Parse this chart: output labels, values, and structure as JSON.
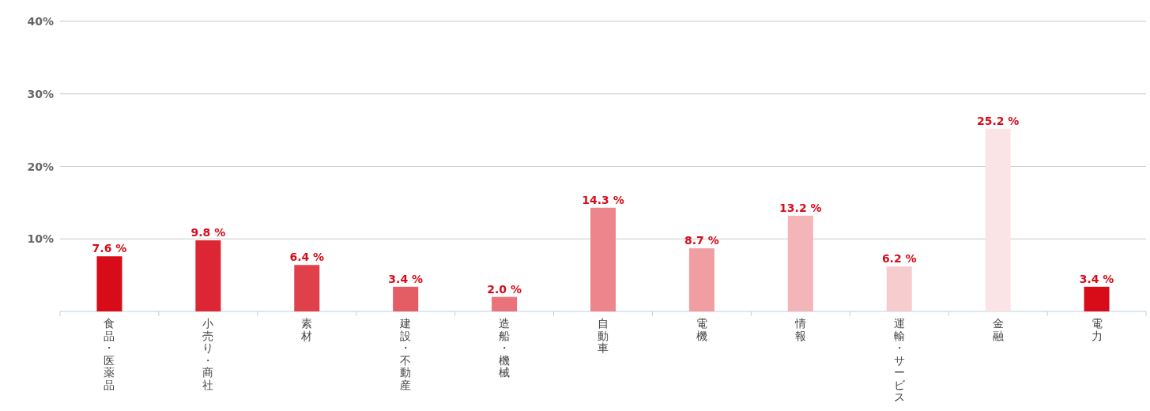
{
  "chart_data": {
    "type": "bar",
    "categories": [
      "食品・医薬品",
      "小売り・商社",
      "素材",
      "建設・不動産",
      "造船・機械",
      "自動車",
      "電機",
      "情報",
      "運輸・サービス",
      "金融",
      "電力"
    ],
    "values": [
      7.6,
      9.8,
      6.4,
      3.4,
      2.0,
      14.3,
      8.7,
      13.2,
      6.2,
      25.2,
      3.4
    ],
    "colors": [
      "#d70c18",
      "#dc2633",
      "#e0404a",
      "#e45c64",
      "#e8737a",
      "#ec868c",
      "#f09ea2",
      "#f3b5b8",
      "#f6cccf",
      "#fae4e6",
      "#d70c18"
    ],
    "value_labels": [
      "7.6 %",
      "9.8 %",
      "6.4 %",
      "3.4 %",
      "2.0 %",
      "14.3 %",
      "8.7 %",
      "13.2 %",
      "6.2 %",
      "25.2 %",
      "3.4 %"
    ],
    "ylim": [
      0,
      40
    ],
    "yticks": [
      {
        "value": 10,
        "label": "10%"
      },
      {
        "value": 20,
        "label": "20%"
      },
      {
        "value": 30,
        "label": "30%"
      },
      {
        "value": 40,
        "label": "40%"
      }
    ],
    "grid": "y"
  }
}
